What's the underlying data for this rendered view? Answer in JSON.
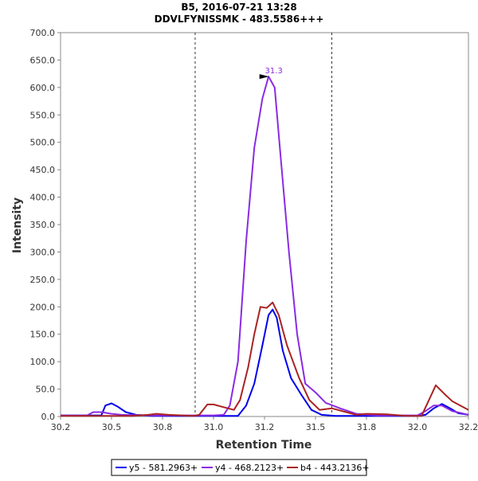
{
  "chart_data": {
    "type": "line",
    "title": "B5, 2016-07-21 13:28",
    "subtitle": "DDVLFYNISSMK - 483.5586+++",
    "xlabel": "Retention Time",
    "ylabel": "Intensity",
    "xlim": [
      30.25,
      32.25
    ],
    "ylim": [
      0,
      700
    ],
    "x_ticks": [
      30.25,
      30.5,
      30.75,
      31.0,
      31.25,
      31.5,
      31.75,
      32.0,
      32.25
    ],
    "x_tick_labels": [
      "30.2",
      "30.5",
      "30.8",
      "31.0",
      "31.2",
      "31.5",
      "31.8",
      "32.0",
      "32.2"
    ],
    "y_ticks": [
      0,
      50,
      100,
      150,
      200,
      250,
      300,
      350,
      400,
      450,
      500,
      550,
      600,
      650,
      700
    ],
    "y_tick_labels": [
      "0.0",
      "50.0",
      "100.0",
      "150.0",
      "200.0",
      "250.0",
      "300.0",
      "350.0",
      "400.0",
      "450.0",
      "500.0",
      "550.0",
      "600.0",
      "650.0",
      "700.0"
    ],
    "boundaries": [
      30.91,
      31.58
    ],
    "annotation": {
      "text": "31.3",
      "x": 31.28,
      "y": 620,
      "color": "#8a2be2"
    },
    "legend_position": "bottom",
    "series": [
      {
        "name": "y5 - 581.2963+",
        "color": "#0000ee",
        "points": [
          [
            30.25,
            2
          ],
          [
            30.45,
            2
          ],
          [
            30.47,
            20
          ],
          [
            30.5,
            24
          ],
          [
            30.53,
            18
          ],
          [
            30.57,
            8
          ],
          [
            30.62,
            3
          ],
          [
            30.7,
            1
          ],
          [
            31.0,
            1
          ],
          [
            31.12,
            1
          ],
          [
            31.16,
            20
          ],
          [
            31.2,
            60
          ],
          [
            31.24,
            130
          ],
          [
            31.27,
            185
          ],
          [
            31.29,
            195
          ],
          [
            31.31,
            180
          ],
          [
            31.34,
            120
          ],
          [
            31.38,
            70
          ],
          [
            31.43,
            40
          ],
          [
            31.48,
            12
          ],
          [
            31.53,
            3
          ],
          [
            31.6,
            1
          ],
          [
            32.0,
            1
          ],
          [
            32.04,
            3
          ],
          [
            32.08,
            15
          ],
          [
            32.12,
            23
          ],
          [
            32.16,
            15
          ],
          [
            32.2,
            6
          ],
          [
            32.25,
            3
          ]
        ]
      },
      {
        "name": "y4 - 468.2123+",
        "color": "#8a2be2",
        "points": [
          [
            30.25,
            2
          ],
          [
            30.38,
            2
          ],
          [
            30.41,
            8
          ],
          [
            30.45,
            8
          ],
          [
            30.5,
            5
          ],
          [
            30.55,
            3
          ],
          [
            30.7,
            2
          ],
          [
            31.0,
            2
          ],
          [
            31.05,
            3
          ],
          [
            31.08,
            20
          ],
          [
            31.12,
            100
          ],
          [
            31.16,
            320
          ],
          [
            31.2,
            490
          ],
          [
            31.24,
            580
          ],
          [
            31.27,
            620
          ],
          [
            31.3,
            600
          ],
          [
            31.33,
            470
          ],
          [
            31.37,
            300
          ],
          [
            31.41,
            150
          ],
          [
            31.45,
            60
          ],
          [
            31.5,
            44
          ],
          [
            31.55,
            25
          ],
          [
            31.62,
            15
          ],
          [
            31.7,
            5
          ],
          [
            31.8,
            2
          ],
          [
            32.0,
            2
          ],
          [
            32.04,
            10
          ],
          [
            32.08,
            20
          ],
          [
            32.12,
            20
          ],
          [
            32.17,
            10
          ],
          [
            32.25,
            3
          ]
        ]
      },
      {
        "name": "b4 - 443.2136+",
        "color": "#aa2222",
        "points": [
          [
            30.25,
            1
          ],
          [
            30.6,
            1
          ],
          [
            30.68,
            3
          ],
          [
            30.72,
            5
          ],
          [
            30.78,
            3
          ],
          [
            30.9,
            1
          ],
          [
            30.93,
            3
          ],
          [
            30.97,
            22
          ],
          [
            31.0,
            22
          ],
          [
            31.05,
            17
          ],
          [
            31.1,
            12
          ],
          [
            31.13,
            30
          ],
          [
            31.17,
            90
          ],
          [
            31.2,
            150
          ],
          [
            31.23,
            200
          ],
          [
            31.26,
            198
          ],
          [
            31.29,
            208
          ],
          [
            31.32,
            185
          ],
          [
            31.36,
            130
          ],
          [
            31.42,
            70
          ],
          [
            31.47,
            30
          ],
          [
            31.52,
            12
          ],
          [
            31.58,
            15
          ],
          [
            31.65,
            8
          ],
          [
            31.7,
            3
          ],
          [
            31.75,
            5
          ],
          [
            31.85,
            4
          ],
          [
            31.95,
            1
          ],
          [
            32.02,
            1
          ],
          [
            32.05,
            25
          ],
          [
            32.09,
            57
          ],
          [
            32.13,
            42
          ],
          [
            32.17,
            28
          ],
          [
            32.22,
            18
          ],
          [
            32.25,
            12
          ]
        ]
      }
    ]
  }
}
